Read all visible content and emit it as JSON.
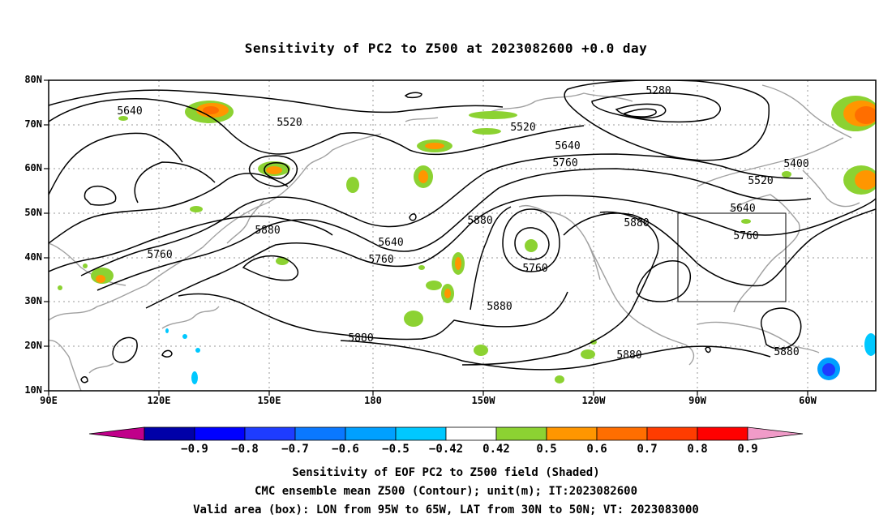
{
  "title": "Sensitivity of PC2 to Z500 at 2023082600 +0.0 day",
  "lat_labels": [
    "80N",
    "70N",
    "60N",
    "50N",
    "40N",
    "30N",
    "20N",
    "10N"
  ],
  "lon_labels": [
    "90E",
    "120E",
    "150E",
    "180",
    "150W",
    "120W",
    "90W",
    "60W"
  ],
  "contour_labels": [
    "5640",
    "5520",
    "5280",
    "5520",
    "5640",
    "5760",
    "5400",
    "5520",
    "5640",
    "5760",
    "5880",
    "5640",
    "5760",
    "5880",
    "5760",
    "5880",
    "5760",
    "5880",
    "5880",
    "5880",
    "5880"
  ],
  "colorbar": {
    "labels": [
      "-0.9",
      "-0.8",
      "-0.7",
      "-0.6",
      "-0.5",
      "-0.42",
      "0.42",
      "0.5",
      "0.6",
      "0.7",
      "0.8",
      "0.9"
    ],
    "colors": [
      "#c0008a",
      "#0000a8",
      "#0000ff",
      "#1e3cff",
      "#0a78ff",
      "#00a0ff",
      "#00c8ff",
      "#ffffff",
      "#8cd232",
      "#ff9600",
      "#ff6e00",
      "#ff3c00",
      "#ff0000",
      "#f09bc8"
    ]
  },
  "valid_box": {
    "lon_from": "95W",
    "lon_to": "65W",
    "lat_from": "30N",
    "lat_to": "50N"
  },
  "footer": {
    "line1": "Sensitivity of EOF PC2 to Z500 field (Shaded)",
    "line2": "CMC ensemble mean Z500 (Contour); unit(m); IT:2023082600",
    "line3": "Valid area (box): LON from 95W to 65W, LAT from 30N to 50N; VT: 2023083000"
  }
}
